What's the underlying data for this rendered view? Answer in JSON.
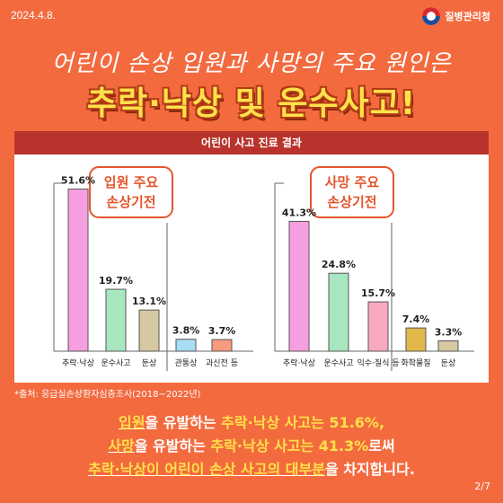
{
  "date": "2024.4.8.",
  "logo": {
    "text": "질병관리청"
  },
  "header": {
    "subtitle": "어린이 손상 입원과 사망의 주요 원인은",
    "title": "추락·낙상 및 운수사고!"
  },
  "panel_title": "어린이 사고 진료 결과",
  "source": "*출처: 응급실손상환자심층조사(2018~2022년)",
  "summary": {
    "line1": [
      "입원",
      "을 유발하는 ",
      "추락·낙상 사고는 51.6%,"
    ],
    "line2": [
      "사망",
      "을 유발하는 ",
      "추락·낙상 사고는 41.3%",
      "로써"
    ],
    "line3": [
      "추락·낙상이 어린이 손상 사고의 대부분",
      "을 차지합니다."
    ]
  },
  "page": "2/7",
  "chart_data": [
    {
      "type": "bar",
      "title": "입원 주요 손상기전",
      "categories": [
        "추락·낙상",
        "운수사고",
        "둔상",
        "관통상",
        "과신전 등"
      ],
      "values": [
        51.6,
        19.7,
        13.1,
        3.8,
        3.7
      ],
      "value_labels": [
        "51.6%",
        "19.7%",
        "13.1%",
        "3.8%",
        "3.7%"
      ],
      "colors": [
        "#f59fe0",
        "#a8e6c0",
        "#d6c8a0",
        "#a9dcf5",
        "#f79a7e"
      ],
      "ylim": [
        0,
        60
      ]
    },
    {
      "type": "bar",
      "title": "사망 주요 손상기전",
      "categories": [
        "추락·낙상",
        "운수사고",
        "익수·질식 등",
        "화학물질",
        "둔상"
      ],
      "values": [
        41.3,
        24.8,
        15.7,
        7.4,
        3.3
      ],
      "value_labels": [
        "41.3%",
        "24.8%",
        "15.7%",
        "7.4%",
        "3.3%"
      ],
      "colors": [
        "#f59fe0",
        "#a8e6c0",
        "#f7a9bf",
        "#e3b84a",
        "#d6c8a0"
      ],
      "ylim": [
        0,
        60
      ]
    }
  ]
}
